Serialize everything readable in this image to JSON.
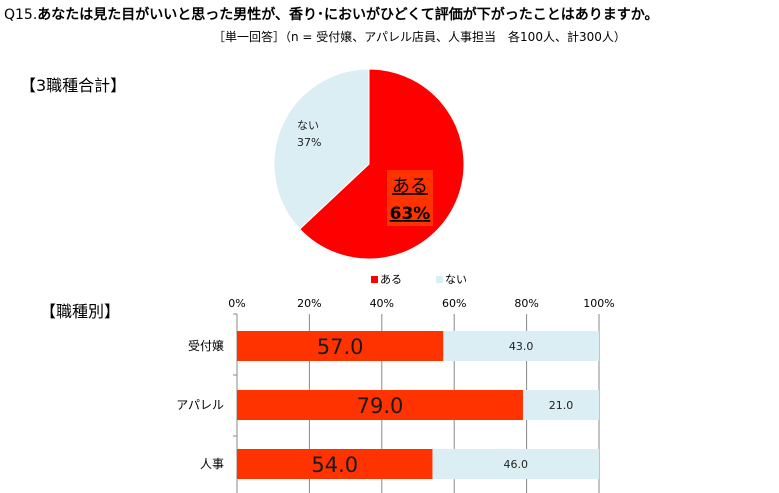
{
  "question": {
    "number": "Q15.",
    "text": "あなたは見た目がいいと思った男性が、香り･においがひどくて評価が下がったことはありますか。",
    "note": "［単一回答］（n = 受付嬢、アパレル店員、人事担当　各100人、計300人）"
  },
  "sections": {
    "total": "【3職種合計】",
    "by_job": "【職種別】"
  },
  "colors": {
    "yes": "#ff0000",
    "yes_bar": "#ff3300",
    "no": "#dbeef3",
    "axis": "#888888"
  },
  "chart_data": [
    {
      "type": "pie",
      "categories": [
        "ある",
        "ない"
      ],
      "values": [
        63,
        37
      ],
      "data_labels": [
        "63%",
        "37%"
      ],
      "legend": [
        "ある",
        "ない"
      ],
      "legend_position": "bottom"
    },
    {
      "type": "bar",
      "orientation": "horizontal",
      "stacked": true,
      "categories": [
        "受付嬢",
        "アパレル",
        "人事"
      ],
      "series": [
        {
          "name": "ある",
          "values": [
            57.0,
            79.0,
            54.0
          ],
          "labels": [
            "57.0",
            "79.0",
            "54.0"
          ]
        },
        {
          "name": "ない",
          "values": [
            43.0,
            21.0,
            46.0
          ],
          "labels": [
            "43.0",
            "21.0",
            "46.0"
          ]
        }
      ],
      "xlim": [
        0,
        100
      ],
      "x_ticks": [
        "0%",
        "20%",
        "40%",
        "60%",
        "80%",
        "100%"
      ],
      "grid": true
    }
  ]
}
